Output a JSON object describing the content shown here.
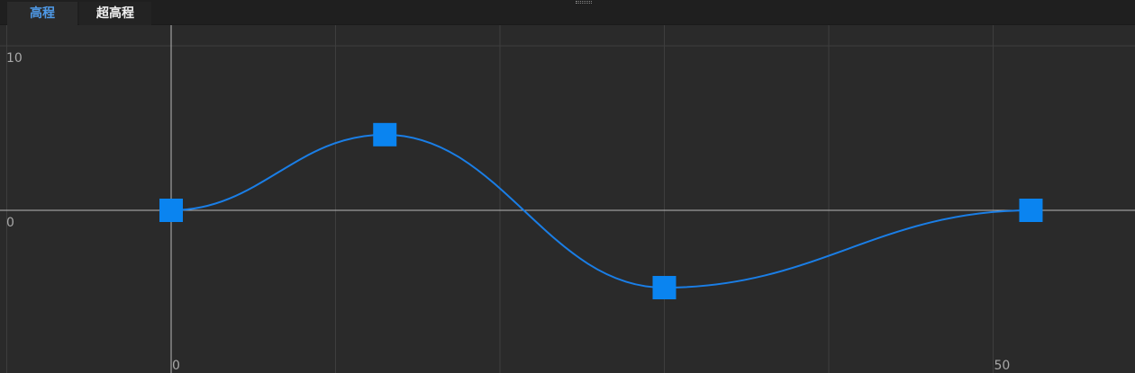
{
  "tabs": [
    {
      "label": "高程",
      "active": true
    },
    {
      "label": "超高程",
      "active": false
    }
  ],
  "colors": {
    "background": "#2a2a2a",
    "tabbar": "#1f1f1f",
    "active_tab_text": "#4f9ae8",
    "curve": "#1a7ee6",
    "point": "#0a84f0",
    "grid": "#3e3e3e",
    "axis": "#b8b8b8"
  },
  "chart_data": {
    "type": "line",
    "smooth": true,
    "points": [
      {
        "x": 0,
        "y": 0
      },
      {
        "x": 13,
        "y": 4.6
      },
      {
        "x": 30,
        "y": -4.7
      },
      {
        "x": 52.3,
        "y": 0
      }
    ],
    "x_tick_labels": [
      {
        "value": 0,
        "label": "0"
      },
      {
        "value": 50,
        "label": "50"
      }
    ],
    "y_tick_labels": [
      {
        "value": 10,
        "label": "10"
      },
      {
        "value": 0,
        "label": "0"
      }
    ],
    "grid": true,
    "x_grid_step": 10,
    "y_grid_step": 10
  }
}
